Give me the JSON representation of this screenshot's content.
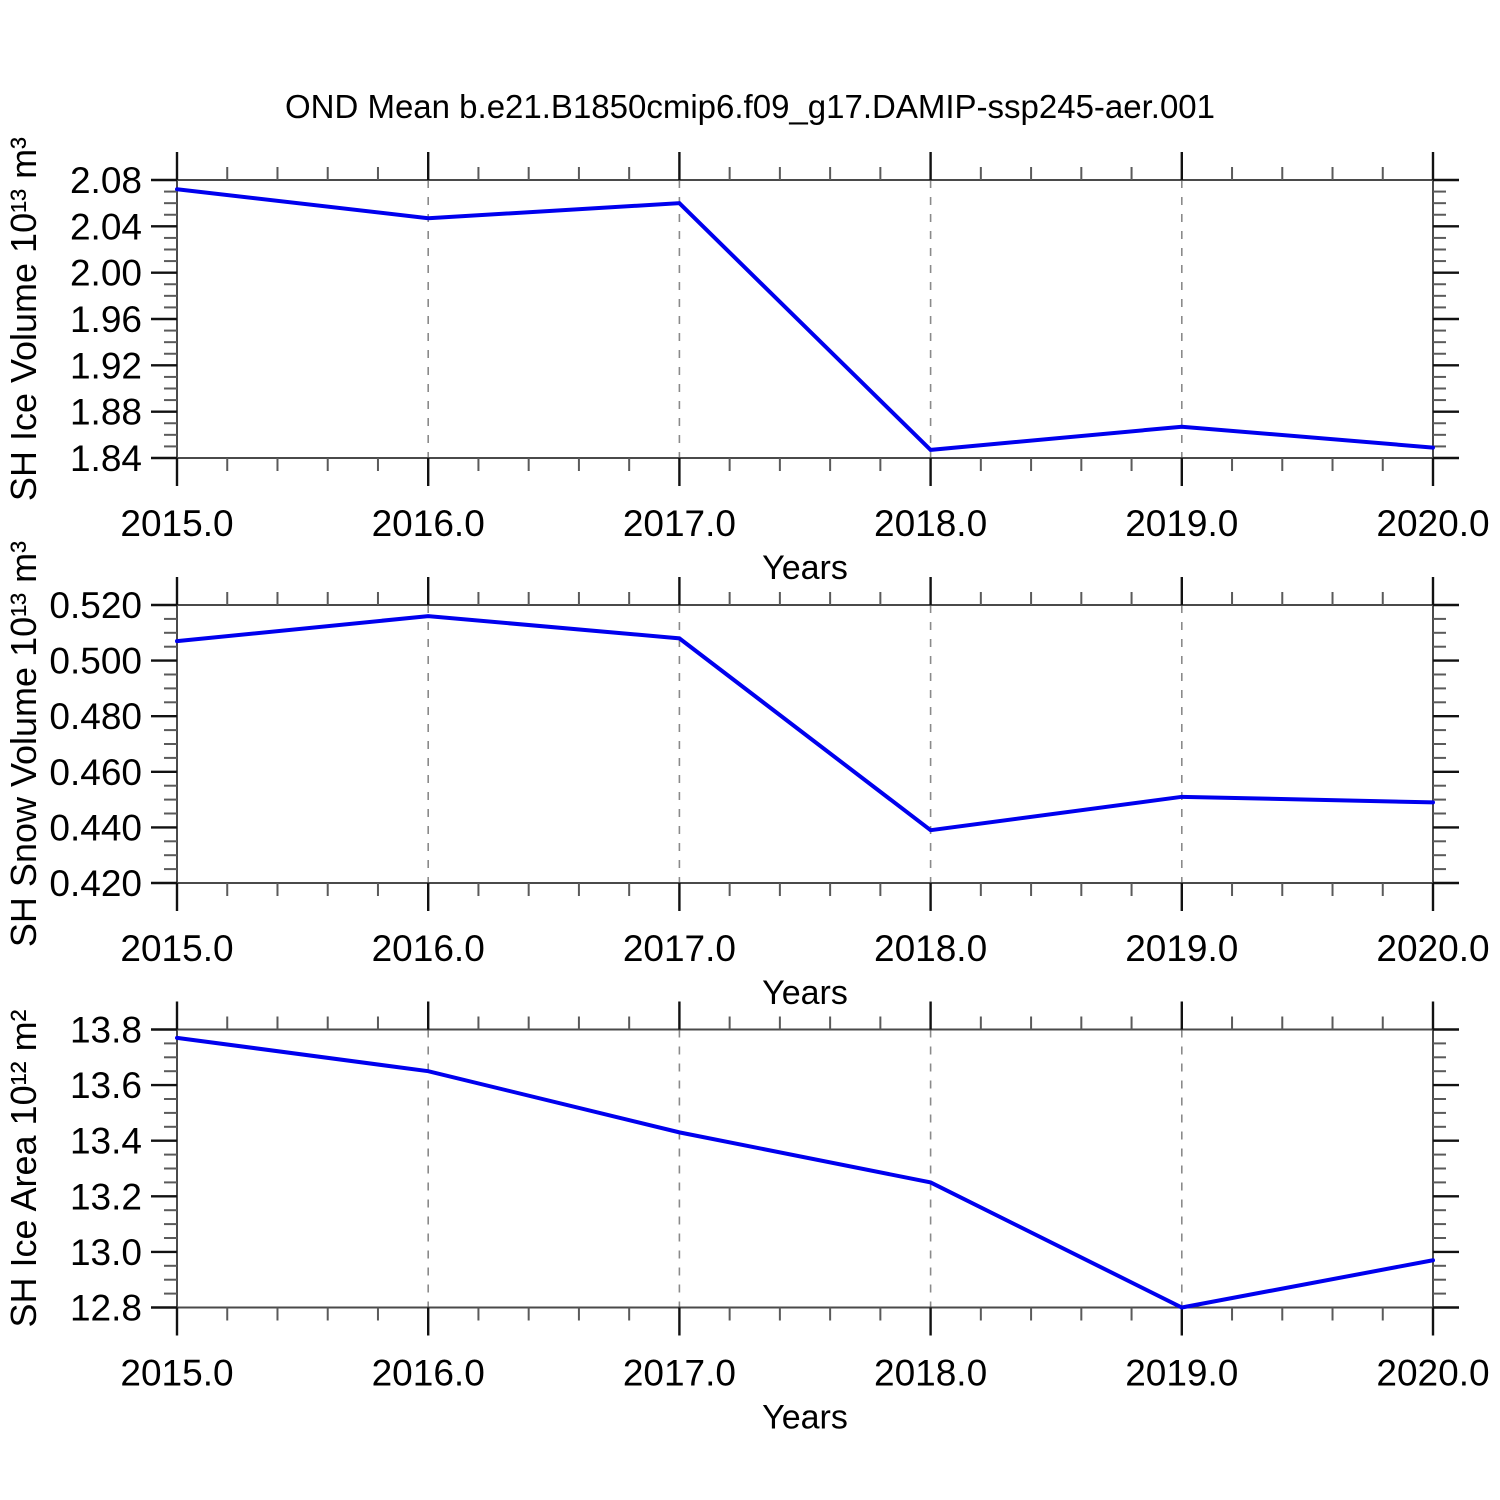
{
  "title": "OND Mean b.e21.B1850cmip6.f09_g17.DAMIP-ssp245-aer.001",
  "colors": {
    "line": "#0000ee",
    "frame": "#4a4a4a",
    "tick_major": "#111111",
    "tick_minor": "#5a5a5a",
    "grid": "#8a8a8a",
    "text": "#000000"
  },
  "chart_data": [
    {
      "type": "line",
      "name": "sh-ice-volume",
      "ylabel": "SH Ice Volume 10¹³ m³",
      "xlabel": "Years",
      "x": [
        2015,
        2016,
        2017,
        2018,
        2019,
        2020
      ],
      "values": [
        2.072,
        2.047,
        2.06,
        1.847,
        1.867,
        1.849
      ],
      "xlim": [
        2015,
        2020
      ],
      "ylim": [
        1.84,
        2.08
      ],
      "y_major_step": 0.04,
      "y_minor_step": 0.01,
      "y_tick_labels": [
        "2.08",
        "2.04",
        "2.00",
        "1.96",
        "1.92",
        "1.88",
        "1.84"
      ],
      "x_minor_step": 0.2,
      "x_tick_labels": [
        "2015.0",
        "2016.0",
        "2017.0",
        "2018.0",
        "2019.0",
        "2020.0"
      ],
      "grid_x_dashed": [
        2016,
        2017,
        2018,
        2019
      ],
      "legend": "none",
      "grid_horizontal": "off"
    },
    {
      "type": "line",
      "name": "sh-snow-volume",
      "ylabel": "SH Snow Volume 10¹³ m³",
      "xlabel": "Years",
      "x": [
        2015,
        2016,
        2017,
        2018,
        2019,
        2020
      ],
      "values": [
        0.507,
        0.516,
        0.508,
        0.439,
        0.451,
        0.449
      ],
      "xlim": [
        2015,
        2020
      ],
      "ylim": [
        0.42,
        0.52
      ],
      "y_major_step": 0.02,
      "y_minor_step": 0.005,
      "y_tick_labels": [
        "0.520",
        "0.500",
        "0.480",
        "0.460",
        "0.440",
        "0.420"
      ],
      "x_minor_step": 0.2,
      "x_tick_labels": [
        "2015.0",
        "2016.0",
        "2017.0",
        "2018.0",
        "2019.0",
        "2020.0"
      ],
      "grid_x_dashed": [
        2016,
        2017,
        2018,
        2019
      ],
      "legend": "none",
      "grid_horizontal": "off"
    },
    {
      "type": "line",
      "name": "sh-ice-area",
      "ylabel": "SH Ice Area 10¹² m²",
      "xlabel": "Years",
      "x": [
        2015,
        2016,
        2017,
        2018,
        2019,
        2020
      ],
      "values": [
        13.77,
        13.65,
        13.43,
        13.25,
        12.8,
        12.97
      ],
      "xlim": [
        2015,
        2020
      ],
      "ylim": [
        12.8,
        13.8
      ],
      "y_major_step": 0.2,
      "y_minor_step": 0.05,
      "y_tick_labels": [
        "13.8",
        "13.6",
        "13.4",
        "13.2",
        "13.0",
        "12.8"
      ],
      "x_minor_step": 0.2,
      "x_tick_labels": [
        "2015.0",
        "2016.0",
        "2017.0",
        "2018.0",
        "2019.0",
        "2020.0"
      ],
      "grid_x_dashed": [
        2016,
        2017,
        2018,
        2019
      ],
      "legend": "none",
      "grid_horizontal": "off"
    }
  ]
}
